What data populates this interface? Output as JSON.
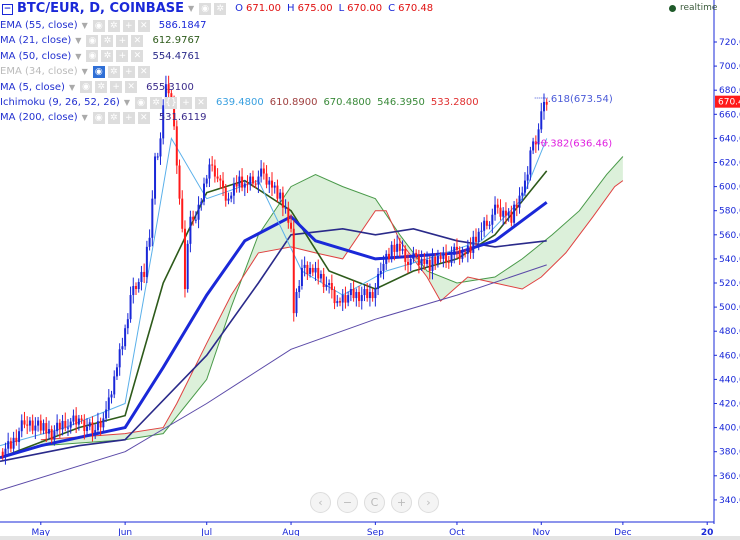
{
  "header": {
    "symbol": "BTC/EUR, D, COINBASE",
    "ohlc": [
      {
        "k": "O",
        "v": "671.00"
      },
      {
        "k": "H",
        "v": "675.00"
      },
      {
        "k": "L",
        "v": "670.00"
      },
      {
        "k": "C",
        "v": "670.48"
      }
    ]
  },
  "indicators": [
    {
      "name": "EMA (55, close)",
      "values": [
        "586.1847"
      ],
      "value_colors": [
        "#1a28d8"
      ],
      "visible": true
    },
    {
      "name": "MA (21, close)",
      "values": [
        "612.9767"
      ],
      "value_colors": [
        "#2d5a1a"
      ],
      "visible": true
    },
    {
      "name": "MA (50, close)",
      "values": [
        "554.4761"
      ],
      "value_colors": [
        "#2a2a8a"
      ],
      "visible": true
    },
    {
      "name": "EMA (34, close)",
      "values": [],
      "value_colors": [],
      "visible": false
    },
    {
      "name": "MA (5, close)",
      "values": [
        "655.3100"
      ],
      "value_colors": [
        "#3a2a8a"
      ],
      "visible": true
    },
    {
      "name": "Ichimoku (9, 26, 52, 26)",
      "values": [
        "639.4800",
        "610.8900",
        "670.4800",
        "546.3950",
        "533.2800"
      ],
      "value_colors": [
        "#3aa0e0",
        "#a04040",
        "#3a8a3a",
        "#3a8a3a",
        "#e03030"
      ],
      "visible": true
    },
    {
      "name": "MA (200, close)",
      "values": [
        "531.6119"
      ],
      "value_colors": [
        "#3a2a8a"
      ],
      "visible": true
    }
  ],
  "realtime_label": "realtime",
  "nav_buttons": [
    "‹",
    "−",
    "C",
    "+",
    "›"
  ],
  "colors": {
    "up": "#1a28d8",
    "down": "#ff1a1a",
    "axis": "#1a28d8",
    "last_price_bg": "#ff1a1a",
    "cloud_fill": "#d8eed6",
    "span_a": "#4a9a4a",
    "span_b": "#e04040"
  },
  "chart_data": {
    "type": "candlestick",
    "title": "BTC/EUR, D, COINBASE",
    "ylim": [
      320,
      730
    ],
    "y_ticks": [
      340,
      360,
      380,
      400,
      420,
      440,
      460,
      480,
      500,
      520,
      540,
      560,
      580,
      600,
      620,
      640,
      660,
      680,
      700,
      720
    ],
    "y_tick_labels": [
      "340.00",
      "360.00",
      "380.00",
      "400.00",
      "420.00",
      "440.00",
      "460.00",
      "480.00",
      "500.00",
      "520.00",
      "540.00",
      "560.00",
      "580.00",
      "600.00",
      "620.00",
      "640.00",
      "660.00",
      "680.00",
      "700.00",
      "720.00"
    ],
    "x_range": [
      "2016-04-16",
      "2017-01-01"
    ],
    "x_ticks": [
      {
        "date": "2016-05-01",
        "label": "May"
      },
      {
        "date": "2016-06-01",
        "label": "Jun"
      },
      {
        "date": "2016-07-01",
        "label": "Jul"
      },
      {
        "date": "2016-08-01",
        "label": "Aug"
      },
      {
        "date": "2016-09-01",
        "label": "Sep"
      },
      {
        "date": "2016-10-01",
        "label": "Oct"
      },
      {
        "date": "2016-11-01",
        "label": "Nov"
      },
      {
        "date": "2016-12-01",
        "label": "Dec"
      },
      {
        "date": "2017-01-01",
        "label": "20"
      }
    ],
    "last_price": "670.48",
    "closes": [
      [
        "2016-04-16",
        380
      ],
      [
        "2016-04-20",
        385
      ],
      [
        "2016-04-25",
        405
      ],
      [
        "2016-05-01",
        400
      ],
      [
        "2016-05-05",
        395
      ],
      [
        "2016-05-10",
        405
      ],
      [
        "2016-05-15",
        405
      ],
      [
        "2016-05-20",
        398
      ],
      [
        "2016-05-25",
        410
      ],
      [
        "2016-05-28",
        440
      ],
      [
        "2016-06-01",
        480
      ],
      [
        "2016-06-03",
        510
      ],
      [
        "2016-06-05",
        520
      ],
      [
        "2016-06-08",
        530
      ],
      [
        "2016-06-10",
        560
      ],
      [
        "2016-06-12",
        620
      ],
      [
        "2016-06-14",
        640
      ],
      [
        "2016-06-16",
        690
      ],
      [
        "2016-06-18",
        670
      ],
      [
        "2016-06-20",
        620
      ],
      [
        "2016-06-22",
        560
      ],
      [
        "2016-06-23",
        520
      ],
      [
        "2016-06-25",
        580
      ],
      [
        "2016-06-27",
        570
      ],
      [
        "2016-06-30",
        600
      ],
      [
        "2016-07-03",
        620
      ],
      [
        "2016-07-06",
        600
      ],
      [
        "2016-07-09",
        590
      ],
      [
        "2016-07-12",
        605
      ],
      [
        "2016-07-15",
        600
      ],
      [
        "2016-07-18",
        605
      ],
      [
        "2016-07-21",
        610
      ],
      [
        "2016-07-24",
        605
      ],
      [
        "2016-07-27",
        595
      ],
      [
        "2016-07-30",
        580
      ],
      [
        "2016-08-01",
        560
      ],
      [
        "2016-08-02",
        500
      ],
      [
        "2016-08-03",
        510
      ],
      [
        "2016-08-05",
        530
      ],
      [
        "2016-08-08",
        530
      ],
      [
        "2016-08-12",
        525
      ],
      [
        "2016-08-15",
        515
      ],
      [
        "2016-08-18",
        505
      ],
      [
        "2016-08-22",
        510
      ],
      [
        "2016-08-26",
        510
      ],
      [
        "2016-08-30",
        510
      ],
      [
        "2016-09-01",
        515
      ],
      [
        "2016-09-03",
        535
      ],
      [
        "2016-09-06",
        545
      ],
      [
        "2016-09-09",
        550
      ],
      [
        "2016-09-12",
        540
      ],
      [
        "2016-09-15",
        540
      ],
      [
        "2016-09-18",
        540
      ],
      [
        "2016-09-21",
        535
      ],
      [
        "2016-09-24",
        540
      ],
      [
        "2016-09-27",
        540
      ],
      [
        "2016-09-30",
        545
      ],
      [
        "2016-10-03",
        545
      ],
      [
        "2016-10-06",
        550
      ],
      [
        "2016-10-09",
        560
      ],
      [
        "2016-10-12",
        570
      ],
      [
        "2016-10-15",
        580
      ],
      [
        "2016-10-18",
        580
      ],
      [
        "2016-10-21",
        575
      ],
      [
        "2016-10-24",
        590
      ],
      [
        "2016-10-26",
        600
      ],
      [
        "2016-10-28",
        630
      ],
      [
        "2016-10-30",
        640
      ],
      [
        "2016-11-01",
        660
      ],
      [
        "2016-11-03",
        670.48
      ]
    ],
    "lines": [
      {
        "name": "MA (200, close)",
        "color": "#5b4aa8",
        "width": 1,
        "points": [
          [
            "2016-04-16",
            348
          ],
          [
            "2016-06-01",
            380
          ],
          [
            "2016-07-01",
            420
          ],
          [
            "2016-08-01",
            465
          ],
          [
            "2016-09-01",
            490
          ],
          [
            "2016-10-01",
            510
          ],
          [
            "2016-11-03",
            535
          ]
        ]
      },
      {
        "name": "MA (50, close)",
        "color": "#2a2a8a",
        "width": 1.6,
        "points": [
          [
            "2016-04-16",
            372
          ],
          [
            "2016-05-15",
            385
          ],
          [
            "2016-06-01",
            390
          ],
          [
            "2016-07-01",
            460
          ],
          [
            "2016-07-20",
            520
          ],
          [
            "2016-08-01",
            560
          ],
          [
            "2016-08-20",
            565
          ],
          [
            "2016-09-01",
            560
          ],
          [
            "2016-09-15",
            565
          ],
          [
            "2016-10-01",
            555
          ],
          [
            "2016-10-15",
            550
          ],
          [
            "2016-11-03",
            555
          ]
        ]
      },
      {
        "name": "MA (21, close)",
        "color": "#2d5a1a",
        "width": 1.6,
        "points": [
          [
            "2016-04-16",
            375
          ],
          [
            "2016-05-15",
            400
          ],
          [
            "2016-06-01",
            410
          ],
          [
            "2016-06-15",
            520
          ],
          [
            "2016-07-01",
            595
          ],
          [
            "2016-07-15",
            605
          ],
          [
            "2016-08-01",
            580
          ],
          [
            "2016-08-15",
            530
          ],
          [
            "2016-09-01",
            515
          ],
          [
            "2016-09-15",
            530
          ],
          [
            "2016-10-01",
            540
          ],
          [
            "2016-10-15",
            560
          ],
          [
            "2016-11-03",
            613
          ]
        ]
      },
      {
        "name": "EMA (55, close)",
        "color": "#1a28d8",
        "width": 3,
        "points": [
          [
            "2016-04-16",
            375
          ],
          [
            "2016-05-01",
            385
          ],
          [
            "2016-06-01",
            400
          ],
          [
            "2016-06-15",
            450
          ],
          [
            "2016-07-01",
            510
          ],
          [
            "2016-07-15",
            555
          ],
          [
            "2016-08-01",
            575
          ],
          [
            "2016-08-10",
            555
          ],
          [
            "2016-09-01",
            540
          ],
          [
            "2016-10-01",
            545
          ],
          [
            "2016-10-15",
            555
          ],
          [
            "2016-11-03",
            587
          ]
        ]
      },
      {
        "name": "Ichimoku conversion",
        "color": "#5ab0ea",
        "width": 1,
        "points": [
          [
            "2016-04-16",
            385
          ],
          [
            "2016-05-10",
            400
          ],
          [
            "2016-06-01",
            420
          ],
          [
            "2016-06-12",
            560
          ],
          [
            "2016-06-18",
            640
          ],
          [
            "2016-07-01",
            590
          ],
          [
            "2016-07-20",
            605
          ],
          [
            "2016-08-05",
            530
          ],
          [
            "2016-08-20",
            510
          ],
          [
            "2016-09-05",
            530
          ],
          [
            "2016-09-20",
            540
          ],
          [
            "2016-10-10",
            555
          ],
          [
            "2016-10-25",
            590
          ],
          [
            "2016-11-03",
            640
          ]
        ]
      }
    ],
    "cloud": {
      "span_a": [
        [
          "2016-05-01",
          385
        ],
        [
          "2016-06-01",
          390
        ],
        [
          "2016-06-15",
          395
        ],
        [
          "2016-07-01",
          440
        ],
        [
          "2016-07-10",
          500
        ],
        [
          "2016-07-20",
          560
        ],
        [
          "2016-08-01",
          600
        ],
        [
          "2016-08-10",
          610
        ],
        [
          "2016-08-20",
          600
        ],
        [
          "2016-09-01",
          590
        ],
        [
          "2016-09-10",
          560
        ],
        [
          "2016-09-20",
          530
        ],
        [
          "2016-10-01",
          520
        ],
        [
          "2016-10-15",
          525
        ],
        [
          "2016-10-25",
          540
        ],
        [
          "2016-11-05",
          560
        ],
        [
          "2016-11-15",
          580
        ],
        [
          "2016-11-25",
          610
        ],
        [
          "2016-12-01",
          625
        ]
      ],
      "span_b": [
        [
          "2016-05-01",
          390
        ],
        [
          "2016-06-01",
          395
        ],
        [
          "2016-06-15",
          400
        ],
        [
          "2016-06-20",
          420
        ],
        [
          "2016-07-01",
          470
        ],
        [
          "2016-07-10",
          510
        ],
        [
          "2016-07-20",
          545
        ],
        [
          "2016-08-01",
          550
        ],
        [
          "2016-08-10",
          545
        ],
        [
          "2016-08-20",
          540
        ],
        [
          "2016-09-01",
          580
        ],
        [
          "2016-09-05",
          580
        ],
        [
          "2016-09-10",
          555
        ],
        [
          "2016-09-20",
          525
        ],
        [
          "2016-09-25",
          505
        ],
        [
          "2016-10-05",
          525
        ],
        [
          "2016-10-15",
          520
        ],
        [
          "2016-10-25",
          515
        ],
        [
          "2016-11-01",
          525
        ],
        [
          "2016-11-10",
          545
        ],
        [
          "2016-11-20",
          575
        ],
        [
          "2016-11-28",
          600
        ],
        [
          "2016-12-01",
          605
        ]
      ]
    },
    "annotations": [
      {
        "text": ".618(673.54)",
        "price": 673.54,
        "color": "#4a5ad8"
      },
      {
        "text": "0.382(636.46)",
        "price": 636.46,
        "color": "#e020e0"
      }
    ]
  }
}
